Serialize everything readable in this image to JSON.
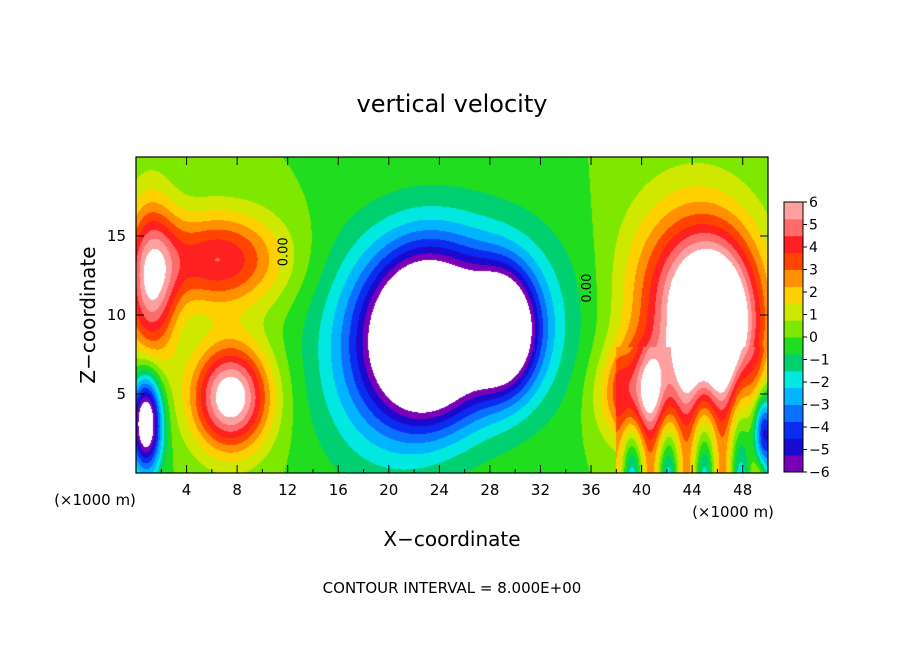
{
  "chart_data": {
    "type": "heatmap",
    "title": "vertical velocity",
    "xlabel": "X−coordinate",
    "ylabel": "Z−coordinate",
    "x_unit": "(×1000 m)",
    "footer": "CONTOUR INTERVAL = 8.000E+00",
    "xlim": [
      0,
      50
    ],
    "ylim": [
      0,
      20
    ],
    "x_ticks": [
      4,
      8,
      12,
      16,
      20,
      24,
      28,
      32,
      36,
      40,
      44,
      48
    ],
    "x_tick_labels": [
      "4",
      "8",
      "12",
      "16",
      "20",
      "24",
      "28",
      "32",
      "36",
      "40",
      "44",
      "48"
    ],
    "y_ticks": [
      5,
      10,
      15
    ],
    "y_tick_labels": [
      "5",
      "10",
      "15"
    ],
    "colorbar": {
      "min": -6,
      "max": 6,
      "tick_values": [
        6,
        5,
        4,
        3,
        2,
        1,
        0,
        -1,
        -2,
        -3,
        -4,
        -5,
        -6
      ],
      "tick_labels": [
        "6",
        "5",
        "4",
        "3",
        "2",
        "1",
        "0",
        "−1",
        "−2",
        "−3",
        "−4",
        "−5",
        "−6"
      ],
      "colors": [
        "#7a00b8",
        "#1a0ad0",
        "#0a2cf0",
        "#0a70ff",
        "#00b4ff",
        "#00e8e0",
        "#00d070",
        "#20dd20",
        "#7ee800",
        "#d0e800",
        "#ffd000",
        "#ff9000",
        "#ff4400",
        "#ff2020",
        "#ff6a6a",
        "#ffa0a0"
      ]
    },
    "contour_labels": [
      {
        "text": "0.00",
        "x": 12.0,
        "z": 14.0
      },
      {
        "text": "0.00",
        "x": 36.0,
        "z": 11.7
      }
    ],
    "features": [
      {
        "kind": "updraft",
        "x": 6.5,
        "z": 13.5,
        "sx": 5.0,
        "sz": 3.0,
        "w": 4.5
      },
      {
        "kind": "updraft",
        "x": 1.2,
        "z": 12.0,
        "sx": 2.0,
        "sz": 5.0,
        "w": 5.5
      },
      {
        "kind": "updraft",
        "x": 7.5,
        "z": 4.8,
        "sx": 3.0,
        "sz": 3.3,
        "w": 7.0
      },
      {
        "kind": "updraft",
        "x": 44.0,
        "z": 11.0,
        "sx": 5.0,
        "sz": 6.0,
        "w": 5.5
      },
      {
        "kind": "updraft",
        "x": 46.0,
        "z": 9.0,
        "sx": 3.2,
        "sz": 5.0,
        "w": 6.5
      },
      {
        "kind": "updraft",
        "x": 40.0,
        "z": 5.0,
        "sx": 3.0,
        "sz": 3.0,
        "w": 5.0
      },
      {
        "kind": "downdraft",
        "x": 26.0,
        "z": 9.5,
        "sx": 7.5,
        "sz": 6.0,
        "w": -4.5
      },
      {
        "kind": "downdraft",
        "x": 23.0,
        "z": 8.5,
        "sx": 4.0,
        "sz": 5.0,
        "w": -8.0
      },
      {
        "kind": "downdraft",
        "x": 29.0,
        "z": 9.0,
        "sx": 2.5,
        "sz": 3.5,
        "w": -7.5
      },
      {
        "kind": "downdraft",
        "x": 19.0,
        "z": 7.0,
        "sx": 5.0,
        "sz": 7.0,
        "w": -2.5
      },
      {
        "kind": "downdraft",
        "x": 0.8,
        "z": 3.2,
        "sx": 1.2,
        "sz": 3.0,
        "w": -8.0
      },
      {
        "kind": "downdraft",
        "x": 49.6,
        "z": 2.5,
        "sx": 0.8,
        "sz": 2.5,
        "w": -6.0
      }
    ]
  }
}
